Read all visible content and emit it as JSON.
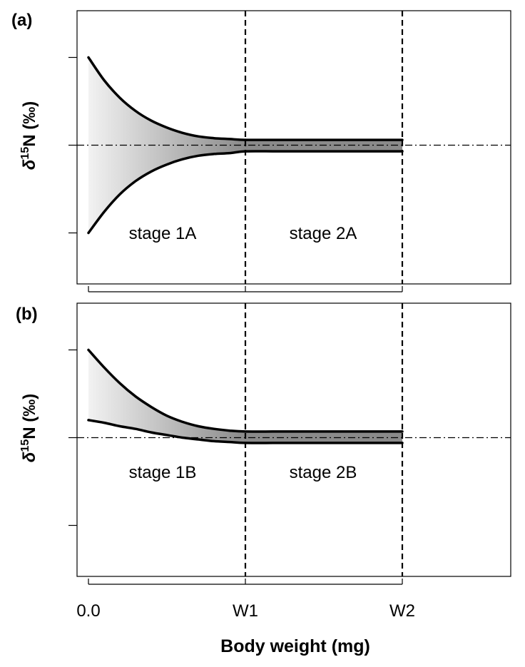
{
  "chart_data": [
    {
      "panel": "(a)",
      "type": "area",
      "ylabel_symbol": "δ",
      "ylabel_sup": "15",
      "ylabel_rest": "N (‰)",
      "xlim": [
        0,
        2.7
      ],
      "ylim": [
        -1.5,
        1.5
      ],
      "x_ticks": [
        0,
        1,
        2
      ],
      "y_ticks": [
        -1,
        0,
        1
      ],
      "x": [
        0,
        0.1,
        0.2,
        0.3,
        0.4,
        0.5,
        0.6,
        0.7,
        0.8,
        0.9,
        1.0,
        1.2,
        1.4,
        1.6,
        1.8,
        2.0
      ],
      "series": [
        {
          "values": [
            1.0,
            0.74,
            0.54,
            0.39,
            0.28,
            0.2,
            0.14,
            0.1,
            0.08,
            0.07,
            0.06,
            0.06,
            0.06,
            0.06,
            0.06,
            0.06
          ]
        },
        {
          "values": [
            -1.0,
            -0.76,
            -0.56,
            -0.41,
            -0.3,
            -0.22,
            -0.16,
            -0.12,
            -0.1,
            -0.09,
            -0.07,
            -0.07,
            -0.07,
            -0.07,
            -0.07,
            -0.07
          ]
        }
      ],
      "reference_y": 0,
      "vertical_lines_x": [
        1,
        2
      ],
      "annotations": [
        "stage 1A",
        "stage 2A"
      ]
    },
    {
      "panel": "(b)",
      "type": "area",
      "ylabel_symbol": "δ",
      "ylabel_sup": "15",
      "ylabel_rest": "N (‰)",
      "xlabel": "Body weight (mg)",
      "xlim": [
        0,
        2.7
      ],
      "ylim": [
        -1.5,
        1.5
      ],
      "x_ticks": [
        0,
        1,
        2
      ],
      "x_tick_labels": [
        "0.0",
        "W1",
        "W2"
      ],
      "y_ticks": [
        -1,
        0,
        1
      ],
      "x": [
        0,
        0.1,
        0.2,
        0.3,
        0.4,
        0.5,
        0.6,
        0.7,
        0.8,
        0.9,
        1.0,
        1.2,
        1.4,
        1.6,
        1.8,
        2.0
      ],
      "series": [
        {
          "values": [
            1.0,
            0.8,
            0.62,
            0.47,
            0.35,
            0.25,
            0.18,
            0.13,
            0.1,
            0.08,
            0.07,
            0.07,
            0.07,
            0.07,
            0.07,
            0.07
          ]
        },
        {
          "values": [
            0.2,
            0.17,
            0.13,
            0.1,
            0.06,
            0.03,
            0.0,
            -0.02,
            -0.04,
            -0.05,
            -0.06,
            -0.06,
            -0.06,
            -0.06,
            -0.06,
            -0.06
          ]
        }
      ],
      "reference_y": 0,
      "vertical_lines_x": [
        1,
        2
      ],
      "annotations": [
        "stage 1B",
        "stage 2B"
      ]
    }
  ],
  "colors": {
    "fill_light": "#f2f2f2",
    "fill_dark": "#8a8a8a",
    "line": "#000000"
  }
}
